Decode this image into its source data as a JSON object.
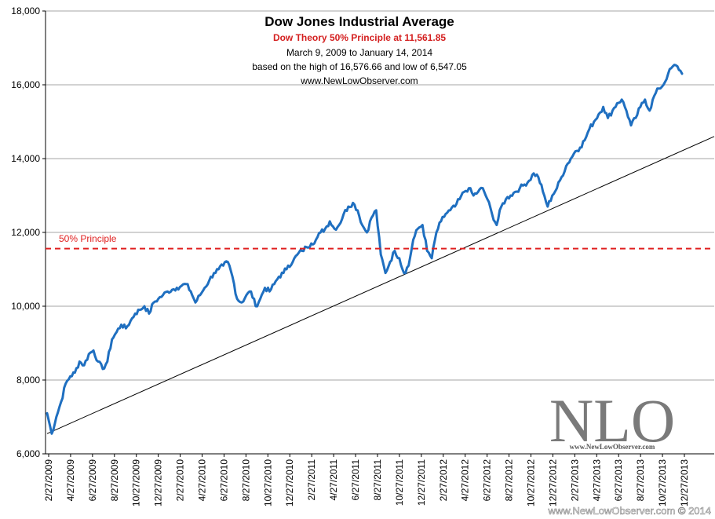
{
  "chart_data": {
    "type": "line",
    "title": "Dow Jones Industrial Average",
    "subtitle_red": "Dow Theory 50% Principle at 11,561.85",
    "date_range": "March 9, 2009  to January 14, 2014",
    "basis": "based on  the high of 16,576.66  and low of 6,547.05",
    "website": "www.NewLowObserver.com",
    "ylim": [
      6000,
      18000
    ],
    "y_ticks": [
      "6,000",
      "8,000",
      "10,000",
      "12,000",
      "14,000",
      "16,000",
      "18,000"
    ],
    "y_tick_values": [
      6000,
      8000,
      10000,
      12000,
      14000,
      16000,
      18000
    ],
    "x_tick_labels": [
      "2/27/2009",
      "4/27/2009",
      "6/27/2009",
      "8/27/2009",
      "10/27/2009",
      "12/27/2009",
      "2/27/2010",
      "4/27/2010",
      "6/27/2010",
      "8/27/2010",
      "10/27/2010",
      "12/27/2010",
      "2/27/2011",
      "4/27/2011",
      "6/27/2011",
      "8/27/2011",
      "10/27/2011",
      "12/27/2011",
      "2/27/2012",
      "4/27/2012",
      "6/27/2012",
      "8/27/2012",
      "10/27/2012",
      "12/27/2012",
      "2/27/2013",
      "4/27/2013",
      "6/27/2013",
      "8/27/2013",
      "10/27/2013",
      "12/27/2013"
    ],
    "principle_level": 11561.85,
    "principle_label": "50% Principle",
    "trendline": {
      "start": [
        0,
        6547
      ],
      "end_value_at_right": 14600
    },
    "series": [
      {
        "name": "Dow Jones Industrial Average",
        "color": "#1f6fc0",
        "values": [
          7100,
          6547,
          7000,
          7400,
          7900,
          8100,
          8200,
          8500,
          8400,
          8700,
          8800,
          8500,
          8300,
          8500,
          9100,
          9300,
          9500,
          9400,
          9600,
          9800,
          9900,
          10000,
          9800,
          10100,
          10200,
          10300,
          10400,
          10450,
          10500,
          10550,
          10600,
          10400,
          10100,
          10300,
          10500,
          10700,
          10900,
          11000,
          11100,
          11200,
          10800,
          10200,
          10100,
          10300,
          10400,
          10000,
          10200,
          10500,
          10400,
          10600,
          10800,
          10900,
          11100,
          11200,
          11400,
          11500,
          11600,
          11700,
          11800,
          12000,
          12100,
          12300,
          12100,
          12200,
          12500,
          12700,
          12800,
          12600,
          12200,
          12000,
          12400,
          12600,
          11400,
          10900,
          11200,
          11500,
          11300,
          10900,
          11100,
          11800,
          12100,
          12200,
          11500,
          11300,
          12000,
          12300,
          12500,
          12600,
          12700,
          12900,
          13100,
          13200,
          13000,
          13100,
          13200,
          12900,
          12500,
          12200,
          12700,
          12900,
          13000,
          13100,
          13200,
          13300,
          13400,
          13600,
          13500,
          13100,
          12700,
          13000,
          13200,
          13500,
          13800,
          14000,
          14200,
          14300,
          14500,
          14800,
          15000,
          15200,
          15400,
          15100,
          15300,
          15500,
          15600,
          15300,
          14900,
          15100,
          15400,
          15600,
          15300,
          15700,
          15900,
          16000,
          16300,
          16500,
          16500,
          16300
        ]
      }
    ],
    "watermark": "NLO",
    "watermark_url": "www.NewLowObserver.com",
    "copyright": "www.NewLowObserver.com © 2014"
  },
  "colors": {
    "line": "#1f6fc0",
    "principle": "#e02020",
    "subtitle": "#d42020",
    "grid": "#a6a6a6",
    "trend": "#000000",
    "watermark": "#7a7a7a"
  }
}
